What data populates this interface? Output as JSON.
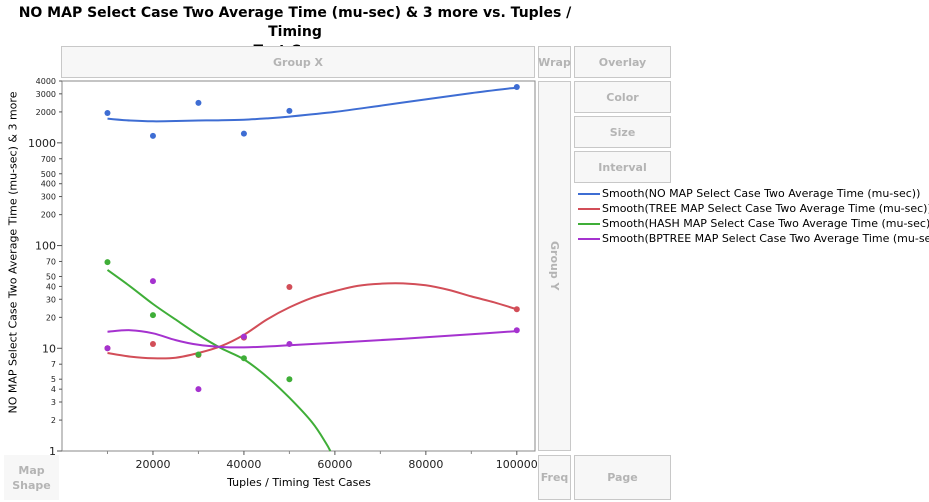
{
  "title_line1": "NO MAP Select Case Two Average Time (mu-sec) & 3 more vs. Tuples / Timing",
  "title_line2": "Test Cases",
  "zones": {
    "group_x": "Group X",
    "wrap": "Wrap",
    "overlay": "Overlay",
    "color": "Color",
    "size": "Size",
    "interval": "Interval",
    "group_y": "Group Y",
    "map_shape_line1": "Map",
    "map_shape_line2": "Shape",
    "freq": "Freq",
    "page": "Page"
  },
  "colors": {
    "no_map": "#3e6dd3",
    "tree_map": "#d24e58",
    "hash_map": "#3fae38",
    "bptree_map": "#a532cf"
  },
  "legend": [
    "Smooth(NO MAP Select Case Two Average Time (mu-sec))",
    "Smooth(TREE MAP Select Case Two Average Time (mu-sec))",
    "Smooth(HASH MAP Select Case Two Average Time (mu-sec))",
    "Smooth(BPTREE MAP Select Case Two Average Time (mu-sec))"
  ],
  "chart_data": {
    "type": "scatter",
    "title": "NO MAP Select Case Two Average Time (mu-sec) & 3 more vs. Tuples / Timing Test Cases",
    "xlabel": "Tuples / Timing Test Cases",
    "ylabel": "NO MAP Select Case Two Average Time (mu-sec) & 3 more",
    "x_scale": "linear",
    "y_scale": "log",
    "xlim": [
      0,
      104000
    ],
    "ylim": [
      1,
      4000
    ],
    "x_ticks": [
      "20000",
      "40000",
      "60000",
      "80000",
      "100000"
    ],
    "y_ticks": [
      "1",
      "2",
      "3",
      "4",
      "5",
      "7",
      "10",
      "20",
      "30",
      "40",
      "50",
      "70",
      "100",
      "200",
      "300",
      "400",
      "500",
      "700",
      "1000",
      "2000",
      "3000",
      "4000"
    ],
    "series": [
      {
        "name": "NO MAP Select Case Two Average Time (mu-sec)",
        "color_key": "no_map",
        "x": [
          10000,
          20000,
          30000,
          40000,
          50000,
          100000
        ],
        "y": [
          1950,
          1170,
          2450,
          1230,
          2050,
          3500
        ],
        "smooth": [
          [
            10000,
            1720
          ],
          [
            15000,
            1650
          ],
          [
            20000,
            1620
          ],
          [
            25000,
            1630
          ],
          [
            30000,
            1650
          ],
          [
            35000,
            1660
          ],
          [
            40000,
            1680
          ],
          [
            45000,
            1730
          ],
          [
            50000,
            1800
          ],
          [
            60000,
            2000
          ],
          [
            70000,
            2300
          ],
          [
            80000,
            2650
          ],
          [
            90000,
            3050
          ],
          [
            100000,
            3450
          ]
        ]
      },
      {
        "name": "TREE MAP Select Case Two Average Time (mu-sec)",
        "color_key": "tree_map",
        "x": [
          10000,
          20000,
          30000,
          40000,
          50000,
          100000
        ],
        "y": [
          10,
          11,
          8.6,
          12.7,
          39.5,
          24
        ],
        "smooth": [
          [
            10000,
            9
          ],
          [
            15000,
            8.3
          ],
          [
            20000,
            8
          ],
          [
            25000,
            8.1
          ],
          [
            30000,
            9
          ],
          [
            35000,
            10.5
          ],
          [
            40000,
            13.5
          ],
          [
            45000,
            19
          ],
          [
            50000,
            25
          ],
          [
            55000,
            31
          ],
          [
            60000,
            36
          ],
          [
            65000,
            40.5
          ],
          [
            70000,
            42.5
          ],
          [
            75000,
            42.8
          ],
          [
            80000,
            41
          ],
          [
            85000,
            37
          ],
          [
            90000,
            32
          ],
          [
            95000,
            28
          ],
          [
            100000,
            24
          ]
        ]
      },
      {
        "name": "HASH MAP Select Case Two Average Time (mu-sec)",
        "color_key": "hash_map",
        "x": [
          10000,
          20000,
          30000,
          40000,
          50000
        ],
        "y": [
          69,
          21,
          8.7,
          8,
          5
        ],
        "smooth": [
          [
            10000,
            58
          ],
          [
            15000,
            40
          ],
          [
            20000,
            27
          ],
          [
            25000,
            19
          ],
          [
            30000,
            13.5
          ],
          [
            35000,
            10
          ],
          [
            40000,
            7.8
          ],
          [
            45000,
            5.3
          ],
          [
            50000,
            3.3
          ],
          [
            55000,
            1.9
          ],
          [
            58000,
            1.2
          ],
          [
            59000,
            1.0
          ]
        ]
      },
      {
        "name": "BPTREE MAP Select Case Two Average Time (mu-sec)",
        "color_key": "bptree_map",
        "x": [
          10000,
          20000,
          30000,
          40000,
          50000,
          100000
        ],
        "y": [
          10,
          45,
          4,
          13,
          11,
          15
        ],
        "smooth": [
          [
            10000,
            14.5
          ],
          [
            15000,
            15
          ],
          [
            20000,
            14
          ],
          [
            25000,
            12
          ],
          [
            30000,
            10.8
          ],
          [
            35000,
            10.3
          ],
          [
            40000,
            10.2
          ],
          [
            45000,
            10.4
          ],
          [
            50000,
            10.7
          ],
          [
            60000,
            11.3
          ],
          [
            70000,
            12
          ],
          [
            80000,
            12.8
          ],
          [
            90000,
            13.7
          ],
          [
            100000,
            14.7
          ]
        ]
      }
    ],
    "grid": false,
    "legend_position": "right"
  }
}
